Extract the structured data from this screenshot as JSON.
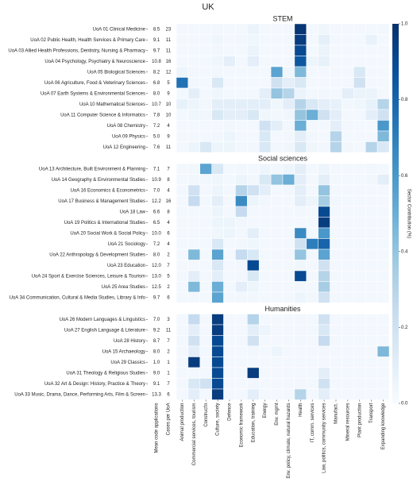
{
  "chart_data": {
    "type": "heatmap",
    "title": "UK",
    "numeric_columns": [
      "Mean code applications",
      "Cases per UoA"
    ],
    "columns": [
      "Animal production",
      "Commercial services, tourism",
      "Construct'n",
      "Culture, society",
      "Defence",
      "Economic framework",
      "Education, training",
      "Energy",
      "Env. mgmt",
      "Env. policy, climate, natural hazards",
      "Health",
      "IT, comm. services",
      "Law, politics, community services",
      "Manufact.",
      "Mineral resources",
      "Plant production",
      "Transport",
      "Expanding knowledge"
    ],
    "colormap": "Blues",
    "colorbar": {
      "label": "Sector Contribution (%)",
      "lim": [
        0,
        1
      ],
      "ticks": [
        {
          "value": 0,
          "label": "0.0"
        },
        0.2,
        0.4,
        0.6,
        0.8,
        {
          "value": 1,
          "label": "1.0"
        }
      ]
    },
    "groups": [
      {
        "title": "STEM",
        "rows": [
          "UoA 01 Clinical Medicine",
          "UoA 02 Public Health, Health Services & Primary Care",
          "UoA 03 Allied Health Professions, Dentistry, Nursing & Pharmacy",
          "UoA 04 Psychology, Psychiatry & Neuroscience",
          "UoA 05 Biological Sciences",
          "UoA 06 Agriculture, Food & Veterinary Sciences",
          "UoA 07 Earth Systems & Environmental Sciences",
          "UoA 10 Mathematical Sciences",
          "UoA 11 Computer Science & Informatics",
          "UoA 08 Chemistry",
          "UoA 09 Physics",
          "UoA 12 Engineering"
        ],
        "mean_code_applications": {
          "values": [
            8.5,
            9.1,
            9.7,
            10.8,
            8.2,
            6.8,
            8,
            10.7,
            7.8,
            7.2,
            5,
            7.6
          ],
          "value_labels": [
            "8.5",
            "9.1",
            "9.7",
            "10.8",
            "8.2",
            "6.8",
            "8.0",
            "10.7",
            "7.8",
            "7.2",
            "5.0",
            "7.6"
          ]
        },
        "cases_per_uoa": [
          23,
          11,
          11,
          16,
          12,
          5,
          9,
          10,
          10,
          4,
          9,
          11
        ],
        "values": [
          [
            0.02,
            0.02,
            0.02,
            0.03,
            0.02,
            0.02,
            0.06,
            0.02,
            0.02,
            0.02,
            0.98,
            0.02,
            0.04,
            0.02,
            0.02,
            0.02,
            0.02,
            0.03
          ],
          [
            0.02,
            0.02,
            0.02,
            0.04,
            0.02,
            0.03,
            0.04,
            0.02,
            0.02,
            0.02,
            0.95,
            0.02,
            0.09,
            0.02,
            0.02,
            0.02,
            0.07,
            0.02
          ],
          [
            0.02,
            0.02,
            0.02,
            0.03,
            0.02,
            0.02,
            0.06,
            0.02,
            0.02,
            0.02,
            0.9,
            0.02,
            0.06,
            0.02,
            0.02,
            0.02,
            0.02,
            0.02
          ],
          [
            0.02,
            0.02,
            0.02,
            0.04,
            0.09,
            0.02,
            0.1,
            0.02,
            0.02,
            0.02,
            0.85,
            0.05,
            0.08,
            0.02,
            0.02,
            0.02,
            0.02,
            0.02
          ],
          [
            0.05,
            0.03,
            0.02,
            0.03,
            0.02,
            0.02,
            0.02,
            0.02,
            0.55,
            0.04,
            0.45,
            0.02,
            0.02,
            0.02,
            0.02,
            0.15,
            0.02,
            0.02
          ],
          [
            0.75,
            0.03,
            0.02,
            0.15,
            0.02,
            0.02,
            0.02,
            0.02,
            0.2,
            0.1,
            0.15,
            0.02,
            0.02,
            0.02,
            0.02,
            0.2,
            0.02,
            0.02
          ],
          [
            0.02,
            0.1,
            0.02,
            0.04,
            0.02,
            0.02,
            0.02,
            0.1,
            0.4,
            0.3,
            0.06,
            0.02,
            0.03,
            0.02,
            0.1,
            0.06,
            0.06,
            0.02
          ],
          [
            0.08,
            0.05,
            0.03,
            0.1,
            0.1,
            0.1,
            0.1,
            0.1,
            0.04,
            0.1,
            0.3,
            0.15,
            0.1,
            0.08,
            0.03,
            0.04,
            0.08,
            0.3
          ],
          [
            0.02,
            0.04,
            0.03,
            0.15,
            0.1,
            0.1,
            0.15,
            0.04,
            0.03,
            0.04,
            0.4,
            0.5,
            0.2,
            0.1,
            0.02,
            0.02,
            0.1,
            0.2
          ],
          [
            0.02,
            0.02,
            0.02,
            0.02,
            0.03,
            0.02,
            0.02,
            0.2,
            0.1,
            0.03,
            0.5,
            0.02,
            0.02,
            0.1,
            0.03,
            0.02,
            0.02,
            0.6
          ],
          [
            0.02,
            0.02,
            0.02,
            0.03,
            0.05,
            0.02,
            0.02,
            0.15,
            0.02,
            0.03,
            0.1,
            0.03,
            0.02,
            0.3,
            0.02,
            0.02,
            0.02,
            0.45
          ],
          [
            0.02,
            0.05,
            0.15,
            0.05,
            0.05,
            0.03,
            0.03,
            0.15,
            0.03,
            0.04,
            0.15,
            0.04,
            0.03,
            0.3,
            0.03,
            0.02,
            0.3,
            0.15
          ]
        ]
      },
      {
        "title": "Social sciences",
        "rows": [
          "UoA 13 Architecture, Built Environment & Planning",
          "UoA 14 Geography & Environmental Studies",
          "UoA 16 Economics & Econometrics",
          "UoA 17 Business & Management Studies",
          "UoA 18 Law",
          "UoA 19 Politics & International Studies",
          "UoA 20 Social Work & Social Policy",
          "UoA 21 Sociology",
          "UoA 22 Anthropology & Development Studies",
          "UoA 23 Education",
          "UoA 24 Sport & Exercise Sciences, Leisure & Tourism",
          "UoA 25 Area Studies",
          "UoA 34 Communication, Cultural & Media Studies, Library & Info"
        ],
        "mean_code_applications": {
          "values": [
            7.1,
            10.9,
            7,
            12.2,
            6.6,
            6.5,
            10,
            7.2,
            8,
            12,
            13,
            12.5,
            9.7
          ],
          "value_labels": [
            "7.1",
            "10.9",
            "7.0",
            "12.2",
            "6.6",
            "6.5",
            "10.0",
            "7.2",
            "8.0",
            "12.0",
            "13.0",
            "12.5",
            "9.7"
          ]
        },
        "cases_per_uoa": [
          7,
          8,
          4,
          16,
          8,
          4,
          6,
          4,
          2,
          7,
          5,
          2,
          6
        ],
        "values": [
          [
            0.02,
            0.03,
            0.55,
            0.15,
            0.02,
            0.03,
            0.02,
            0.05,
            0.03,
            0.05,
            0.1,
            0.02,
            0.05,
            0.02,
            0.02,
            0.02,
            0.03,
            0.02
          ],
          [
            0.02,
            0.03,
            0.03,
            0.04,
            0.02,
            0.05,
            0.03,
            0.15,
            0.4,
            0.5,
            0.1,
            0.02,
            0.1,
            0.02,
            0.02,
            0.02,
            0.03,
            0.1
          ],
          [
            0.02,
            0.2,
            0.02,
            0.05,
            0.02,
            0.3,
            0.2,
            0.1,
            0.02,
            0.03,
            0.1,
            0.02,
            0.4,
            0.02,
            0.02,
            0.02,
            0.02,
            0.02
          ],
          [
            0.02,
            0.25,
            0.02,
            0.1,
            0.02,
            0.65,
            0.05,
            0.03,
            0.02,
            0.02,
            0.1,
            0.05,
            0.35,
            0.03,
            0.02,
            0.02,
            0.02,
            0.02
          ],
          [
            0.02,
            0.02,
            0.02,
            0.05,
            0.02,
            0.25,
            0.02,
            0.02,
            0.02,
            0.02,
            0.03,
            0.02,
            0.9,
            0.02,
            0.02,
            0.02,
            0.02,
            0.02
          ],
          [
            0.02,
            0.02,
            0.02,
            0.05,
            0.05,
            0.03,
            0.02,
            0.02,
            0.02,
            0.02,
            0.02,
            0.02,
            0.95,
            0.02,
            0.02,
            0.02,
            0.02,
            0.02
          ],
          [
            0.02,
            0.02,
            0.02,
            0.04,
            0.05,
            0.02,
            0.1,
            0.02,
            0.02,
            0.02,
            0.65,
            0.02,
            0.6,
            0.02,
            0.02,
            0.02,
            0.02,
            0.02
          ],
          [
            0.02,
            0.02,
            0.02,
            0.15,
            0.02,
            0.03,
            0.04,
            0.02,
            0.02,
            0.02,
            0.2,
            0.7,
            0.8,
            0.02,
            0.02,
            0.02,
            0.02,
            0.02
          ],
          [
            0.02,
            0.45,
            0.02,
            0.55,
            0.02,
            0.25,
            0.15,
            0.02,
            0.02,
            0.03,
            0.4,
            0.02,
            0.55,
            0.02,
            0.02,
            0.02,
            0.02,
            0.02
          ],
          [
            0.02,
            0.02,
            0.02,
            0.15,
            0.02,
            0.03,
            0.9,
            0.02,
            0.02,
            0.02,
            0.04,
            0.02,
            0.2,
            0.02,
            0.02,
            0.02,
            0.02,
            0.02
          ],
          [
            0.02,
            0.1,
            0.02,
            0.1,
            0.02,
            0.03,
            0.15,
            0.02,
            0.02,
            0.02,
            0.9,
            0.02,
            0.3,
            0.02,
            0.02,
            0.02,
            0.02,
            0.02
          ],
          [
            0.02,
            0.45,
            0.02,
            0.5,
            0.02,
            0.1,
            0.05,
            0.02,
            0.02,
            0.02,
            0.03,
            0.02,
            0.35,
            0.02,
            0.02,
            0.02,
            0.02,
            0.02
          ],
          [
            0.02,
            0.02,
            0.02,
            0.55,
            0.02,
            0.03,
            0.03,
            0.02,
            0.02,
            0.02,
            0.05,
            0.03,
            0.2,
            0.02,
            0.02,
            0.02,
            0.02,
            0.02
          ]
        ]
      },
      {
        "title": "Humanities",
        "rows": [
          "UoA 26 Modern Languages & Linguistics",
          "UoA 27 English Language & Literature",
          "UoA 28 History",
          "UoA 15 Archaeology",
          "UoA 29 Classics",
          "UoA 31 Theology & Religious Studies",
          "UoA 32 Art & Design: History, Practice & Theory",
          "UoA 33 Music, Drama, Dance, Performing Arts, Film & Screen"
        ],
        "mean_code_applications": {
          "values": [
            7,
            9.2,
            8.7,
            8,
            1,
            9,
            9.1,
            13.3
          ],
          "value_labels": [
            "7.0",
            "9.2",
            "8.7",
            "8.0",
            "1.0",
            "9.0",
            "9.1",
            "13.3"
          ]
        },
        "cases_per_uoa": [
          3,
          11,
          7,
          2,
          1,
          1,
          7,
          6
        ],
        "values": [
          [
            0.02,
            0.25,
            0.02,
            0.95,
            0.02,
            0.02,
            0.3,
            0.02,
            0.02,
            0.02,
            0.03,
            0.02,
            0.2,
            0.02,
            0.02,
            0.02,
            0.02,
            0.02
          ],
          [
            0.02,
            0.1,
            0.02,
            0.95,
            0.02,
            0.02,
            0.1,
            0.05,
            0.02,
            0.02,
            0.03,
            0.02,
            0.15,
            0.02,
            0.02,
            0.02,
            0.02,
            0.02
          ],
          [
            0.02,
            0.2,
            0.02,
            0.9,
            0.02,
            0.02,
            0.2,
            0.02,
            0.02,
            0.02,
            0.03,
            0.02,
            0.25,
            0.02,
            0.02,
            0.02,
            0.02,
            0.02
          ],
          [
            0.02,
            0.1,
            0.02,
            0.9,
            0.02,
            0.02,
            0.03,
            0.02,
            0.05,
            0.02,
            0.02,
            0.02,
            0.03,
            0.02,
            0.02,
            0.02,
            0.02,
            0.45
          ],
          [
            0.02,
            0.95,
            0.02,
            0.9,
            0.02,
            0.02,
            0.02,
            0.02,
            0.02,
            0.02,
            0.02,
            0.02,
            0.02,
            0.02,
            0.02,
            0.02,
            0.02,
            0.02
          ],
          [
            0.02,
            0.02,
            0.02,
            0.9,
            0.02,
            0.02,
            0.95,
            0.02,
            0.02,
            0.02,
            0.02,
            0.02,
            0.1,
            0.02,
            0.02,
            0.02,
            0.02,
            0.02
          ],
          [
            0.02,
            0.15,
            0.2,
            0.9,
            0.02,
            0.02,
            0.03,
            0.02,
            0.02,
            0.02,
            0.03,
            0.02,
            0.2,
            0.02,
            0.02,
            0.02,
            0.02,
            0.02
          ],
          [
            0.02,
            0.1,
            0.02,
            0.95,
            0.02,
            0.02,
            0.1,
            0.02,
            0.02,
            0.02,
            0.3,
            0.02,
            0.1,
            0.02,
            0.02,
            0.02,
            0.02,
            0.02
          ]
        ]
      }
    ]
  }
}
